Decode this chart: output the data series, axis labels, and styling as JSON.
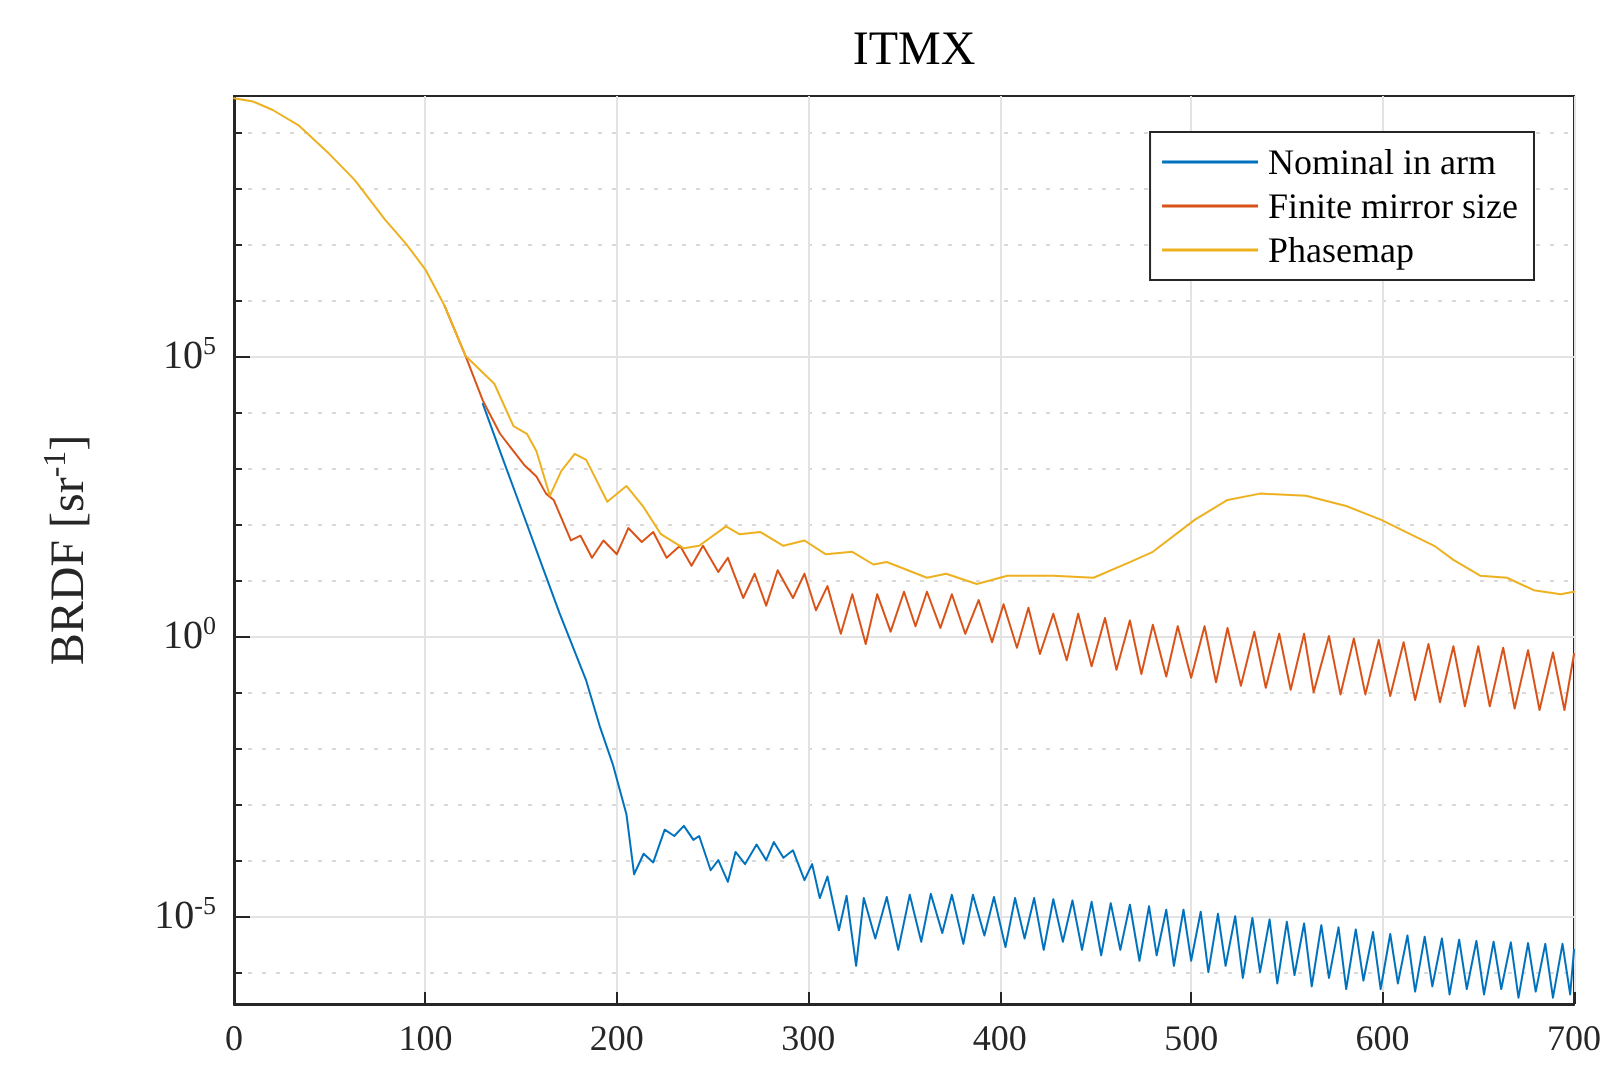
{
  "chart_data": {
    "type": "line",
    "title": "ITMX",
    "ylabel": "BRDF [sr$^{-1}$]",
    "log": "y",
    "grid": true,
    "legend": "top right",
    "marker": "none",
    "xlim": [
      0,
      700
    ],
    "xticks": [
      0,
      100,
      200,
      300,
      400,
      500,
      600,
      700
    ],
    "ylim": [
      2.7e-07,
      4400000000.0
    ],
    "yticks": [
      {
        "value": 1e-06,
        "label": null
      },
      {
        "value": 1e-05,
        "label": "10$^{-5}$"
      },
      {
        "value": 0.0001,
        "label": null
      },
      {
        "value": 0.001,
        "label": null
      },
      {
        "value": 0.01,
        "label": null
      },
      {
        "value": 0.1,
        "label": null
      },
      {
        "value": 1,
        "label": "10$^{0}$"
      },
      {
        "value": 10,
        "label": null
      },
      {
        "value": 100,
        "label": null
      },
      {
        "value": 1000,
        "label": null
      },
      {
        "value": 10000.0,
        "label": null
      },
      {
        "value": 100000.0,
        "label": "10$^{5}$"
      },
      {
        "value": 1000000.0,
        "label": null
      },
      {
        "value": 10000000.0,
        "label": null
      },
      {
        "value": 100000000.0,
        "label": null
      },
      {
        "value": 1000000000.0,
        "label": null
      }
    ],
    "series": [
      {
        "name": "Nominal in arm",
        "color": "#0072bd",
        "x": [
          130,
          140,
          150,
          160,
          170,
          184,
          191,
          198,
          205,
          209,
          214,
          219,
          225,
          230,
          235,
          240,
          243,
          249,
          253,
          258,
          262,
          267,
          273,
          278,
          282,
          287,
          292,
          298,
          302,
          306,
          310,
          316,
          320,
          325,
          329,
          335,
          341,
          347,
          353,
          359,
          364,
          370,
          375,
          381,
          386,
          392,
          397,
          403,
          408,
          413,
          418,
          423,
          428,
          433,
          438,
          443,
          448,
          453,
          458,
          463,
          468,
          473,
          478,
          482,
          487,
          491,
          496,
          500,
          505,
          509,
          514,
          518,
          523,
          527,
          532,
          536,
          541,
          545,
          550,
          554,
          559,
          563,
          568,
          572,
          577,
          581,
          586,
          590,
          595,
          599,
          604,
          608,
          613,
          617,
          622,
          626,
          631,
          635,
          640,
          644,
          649,
          653,
          658,
          662,
          667,
          671,
          676,
          680,
          685,
          689,
          694,
          698,
          700
        ],
        "values": [
          14000.0,
          1600.0,
          190,
          22,
          2.6,
          0.16,
          0.025,
          0.005,
          0.00066,
          5.6e-05,
          0.00013,
          9.1e-05,
          0.00035,
          0.00027,
          0.00041,
          0.00023,
          0.00027,
          6.6e-05,
          0.0001,
          4.1e-05,
          0.00014,
          8.5e-05,
          0.00019,
          0.0001,
          0.00021,
          0.00011,
          0.00015,
          4.4e-05,
          8.5e-05,
          2.1e-05,
          5.1e-05,
          5.6e-06,
          2.3e-05,
          1.3e-06,
          2.1e-05,
          4e-06,
          2.2e-05,
          2.5e-06,
          2.4e-05,
          3.5e-06,
          2.5e-05,
          5e-06,
          2.4e-05,
          3.2e-06,
          2.4e-05,
          4.5e-06,
          2.2e-05,
          2.8e-06,
          2.1e-05,
          4e-06,
          2.1e-05,
          2.5e-06,
          2e-05,
          3.5e-06,
          1.9e-05,
          2.5e-06,
          1.8e-05,
          2e-06,
          1.7e-05,
          2.5e-06,
          1.6e-05,
          1.6e-06,
          1.5e-05,
          2e-06,
          1.3e-05,
          1.3e-06,
          1.3e-05,
          1.6e-06,
          1.2e-05,
          1e-06,
          1.1e-05,
          1.3e-06,
          1e-05,
          7.9e-07,
          9.3e-06,
          1e-06,
          8.7e-06,
          6.3e-07,
          7.9e-06,
          8.9e-07,
          7.4e-06,
          5.6e-07,
          6.9e-06,
          7.9e-07,
          6.3e-06,
          5e-07,
          5.8e-06,
          7.1e-07,
          5.2e-06,
          5e-07,
          4.8e-06,
          6.3e-07,
          4.5e-06,
          4.5e-07,
          4.3e-06,
          5.6e-07,
          4e-06,
          4e-07,
          3.8e-06,
          5e-07,
          3.6e-06,
          4e-07,
          3.5e-06,
          5e-07,
          3.4e-06,
          3.5e-07,
          3.3e-06,
          4.5e-07,
          3.2e-06,
          3.5e-07,
          3.2e-06,
          4e-07,
          2.5e-06
        ]
      },
      {
        "name": "Finite mirror size",
        "color": "#d95319",
        "x": [
          110,
          121,
          130,
          139,
          146,
          152,
          158,
          163,
          167,
          176,
          181,
          187,
          193,
          200,
          206,
          213,
          219,
          226,
          233,
          239,
          245,
          253,
          258,
          266,
          272,
          278,
          284,
          292,
          298,
          304,
          310,
          317,
          323,
          330,
          336,
          343,
          350,
          356,
          362,
          369,
          375,
          382,
          389,
          396,
          402,
          409,
          415,
          421,
          428,
          435,
          441,
          448,
          455,
          461,
          468,
          474,
          480,
          487,
          493,
          500,
          507,
          513,
          519,
          526,
          533,
          539,
          546,
          552,
          559,
          564,
          572,
          578,
          585,
          591,
          598,
          604,
          611,
          617,
          624,
          630,
          637,
          643,
          650,
          656,
          663,
          669,
          676,
          682,
          689,
          695,
          700
        ],
        "values": [
          790000.0,
          100000.0,
          16000.0,
          4100.0,
          2000.0,
          1100.0,
          710,
          350,
          270,
          51,
          62,
          25,
          51,
          29,
          85,
          48,
          72,
          25,
          41,
          18,
          41,
          14,
          25,
          4.8,
          13,
          3.5,
          15,
          4.8,
          13,
          2.9,
          7.8,
          1.1,
          5.6,
          0.72,
          5.6,
          1.2,
          6.2,
          1.5,
          6.2,
          1.4,
          5.6,
          1.1,
          4.4,
          0.78,
          3.7,
          0.62,
          3.2,
          0.48,
          2.5,
          0.37,
          2.5,
          0.29,
          2.1,
          0.25,
          1.9,
          0.21,
          1.6,
          0.19,
          1.5,
          0.18,
          1.5,
          0.15,
          1.4,
          0.13,
          1.2,
          0.12,
          1.1,
          0.11,
          1.1,
          0.1,
          1.0,
          0.091,
          0.91,
          0.091,
          0.85,
          0.085,
          0.78,
          0.072,
          0.72,
          0.066,
          0.66,
          0.056,
          0.66,
          0.056,
          0.62,
          0.051,
          0.56,
          0.048,
          0.51,
          0.048,
          0.48
        ]
      },
      {
        "name": "Phasemap",
        "color": "#edb120",
        "x": [
          0,
          10,
          20,
          34,
          50,
          63,
          79,
          90,
          100,
          110,
          121,
          136,
          146,
          153,
          158,
          165,
          171,
          178,
          184,
          195,
          205,
          214,
          223,
          235,
          243,
          257,
          264,
          275,
          287,
          298,
          309,
          323,
          334,
          341,
          362,
          372,
          388,
          404,
          428,
          449,
          468,
          480,
          502,
          519,
          536,
          560,
          581,
          599,
          627,
          637,
          651,
          665,
          679,
          693,
          700
        ],
        "values": [
          4000000000.0,
          3500000000.0,
          2500000000.0,
          1300000000.0,
          400000000.0,
          140000000.0,
          27000000.0,
          10000000.0,
          3500000.0,
          790000.0,
          100000.0,
          32000.0,
          5600.0,
          4100.0,
          2000.0,
          320,
          890,
          1800.0,
          1400.0,
          250,
          480,
          200,
          66,
          37,
          41,
          91,
          66,
          72,
          41,
          51,
          29,
          32,
          19,
          21,
          11,
          13,
          8.5,
          12,
          12,
          11,
          21,
          32,
          120,
          270,
          350,
          320,
          210,
          120,
          41,
          23,
          12,
          11,
          6.6,
          5.6,
          6.2
        ]
      }
    ]
  }
}
